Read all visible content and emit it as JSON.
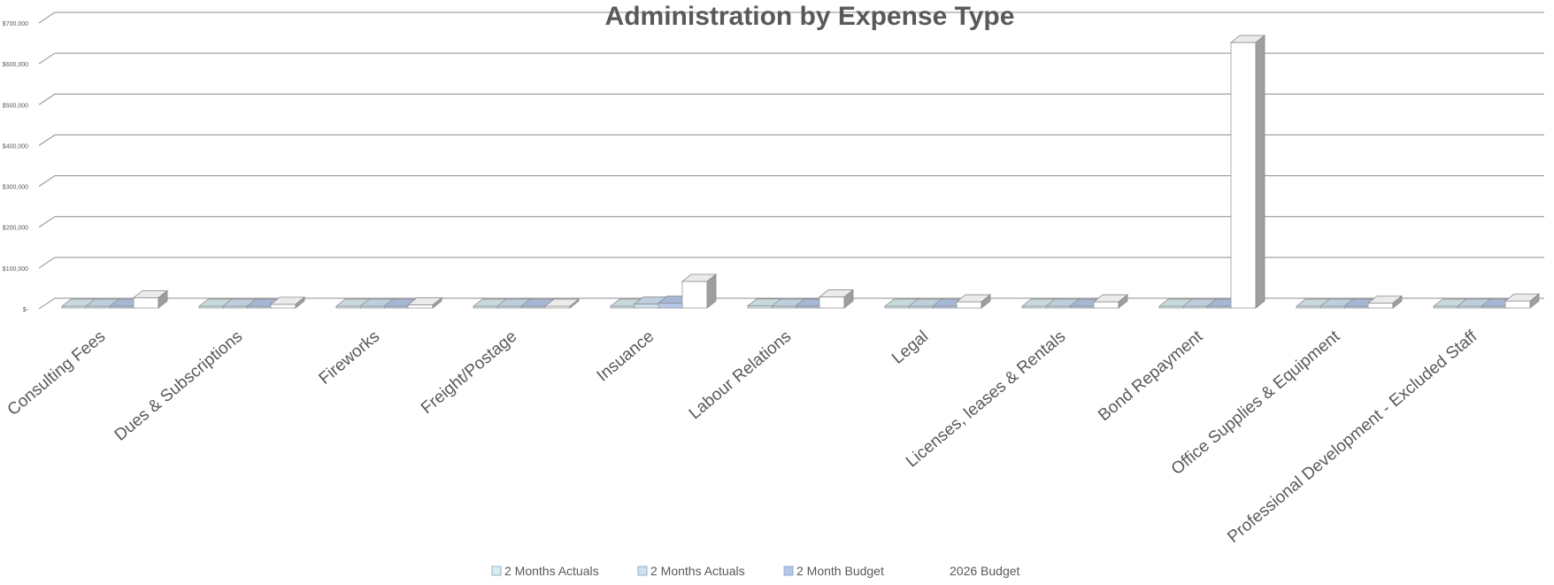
{
  "chart_data": {
    "type": "bar",
    "title": "Administration by Expense Type",
    "xlabel": "",
    "ylabel": "",
    "ylim": [
      0,
      700000
    ],
    "y_ticks": [
      0,
      100000,
      200000,
      300000,
      400000,
      500000,
      600000,
      700000
    ],
    "y_tick_labels": [
      "$-",
      "$100,000",
      "$200,000",
      "$300,000",
      "$400,000",
      "$500,000",
      "$600,000",
      "$700,000"
    ],
    "grid": true,
    "legend_position": "bottom",
    "categories": [
      "Consulting Fees",
      "Dues & Subscriptions",
      "Fireworks",
      "Freight/Postage",
      "Insuance",
      "Labour Relations",
      "Legal",
      "Licenses, leases & Rentals",
      "Bond Repayment",
      "Office Supplies & Equipment",
      "Professional Development - Excluded Staff"
    ],
    "series": [
      {
        "name": "2 Months Actuals",
        "color": "#d9ecef",
        "values": [
          1000,
          500,
          500,
          200,
          3000,
          5000,
          800,
          1500,
          0,
          1500,
          1000
        ]
      },
      {
        "name": "2 Months Actuals",
        "color": "#cfe0f0",
        "values": [
          2000,
          800,
          600,
          300,
          10000,
          3000,
          1000,
          2000,
          0,
          2000,
          1500
        ]
      },
      {
        "name": "2 Month  Budget",
        "color": "#b4c7e7",
        "values": [
          4000,
          1500,
          1200,
          600,
          12000,
          4500,
          2500,
          4000,
          0,
          3000,
          2500
        ]
      },
      {
        "name": "2026 Budget",
        "color": "#ffffff",
        "values": [
          25000,
          9000,
          7500,
          3500,
          65000,
          27000,
          15000,
          15000,
          650000,
          12000,
          17000
        ]
      }
    ]
  }
}
